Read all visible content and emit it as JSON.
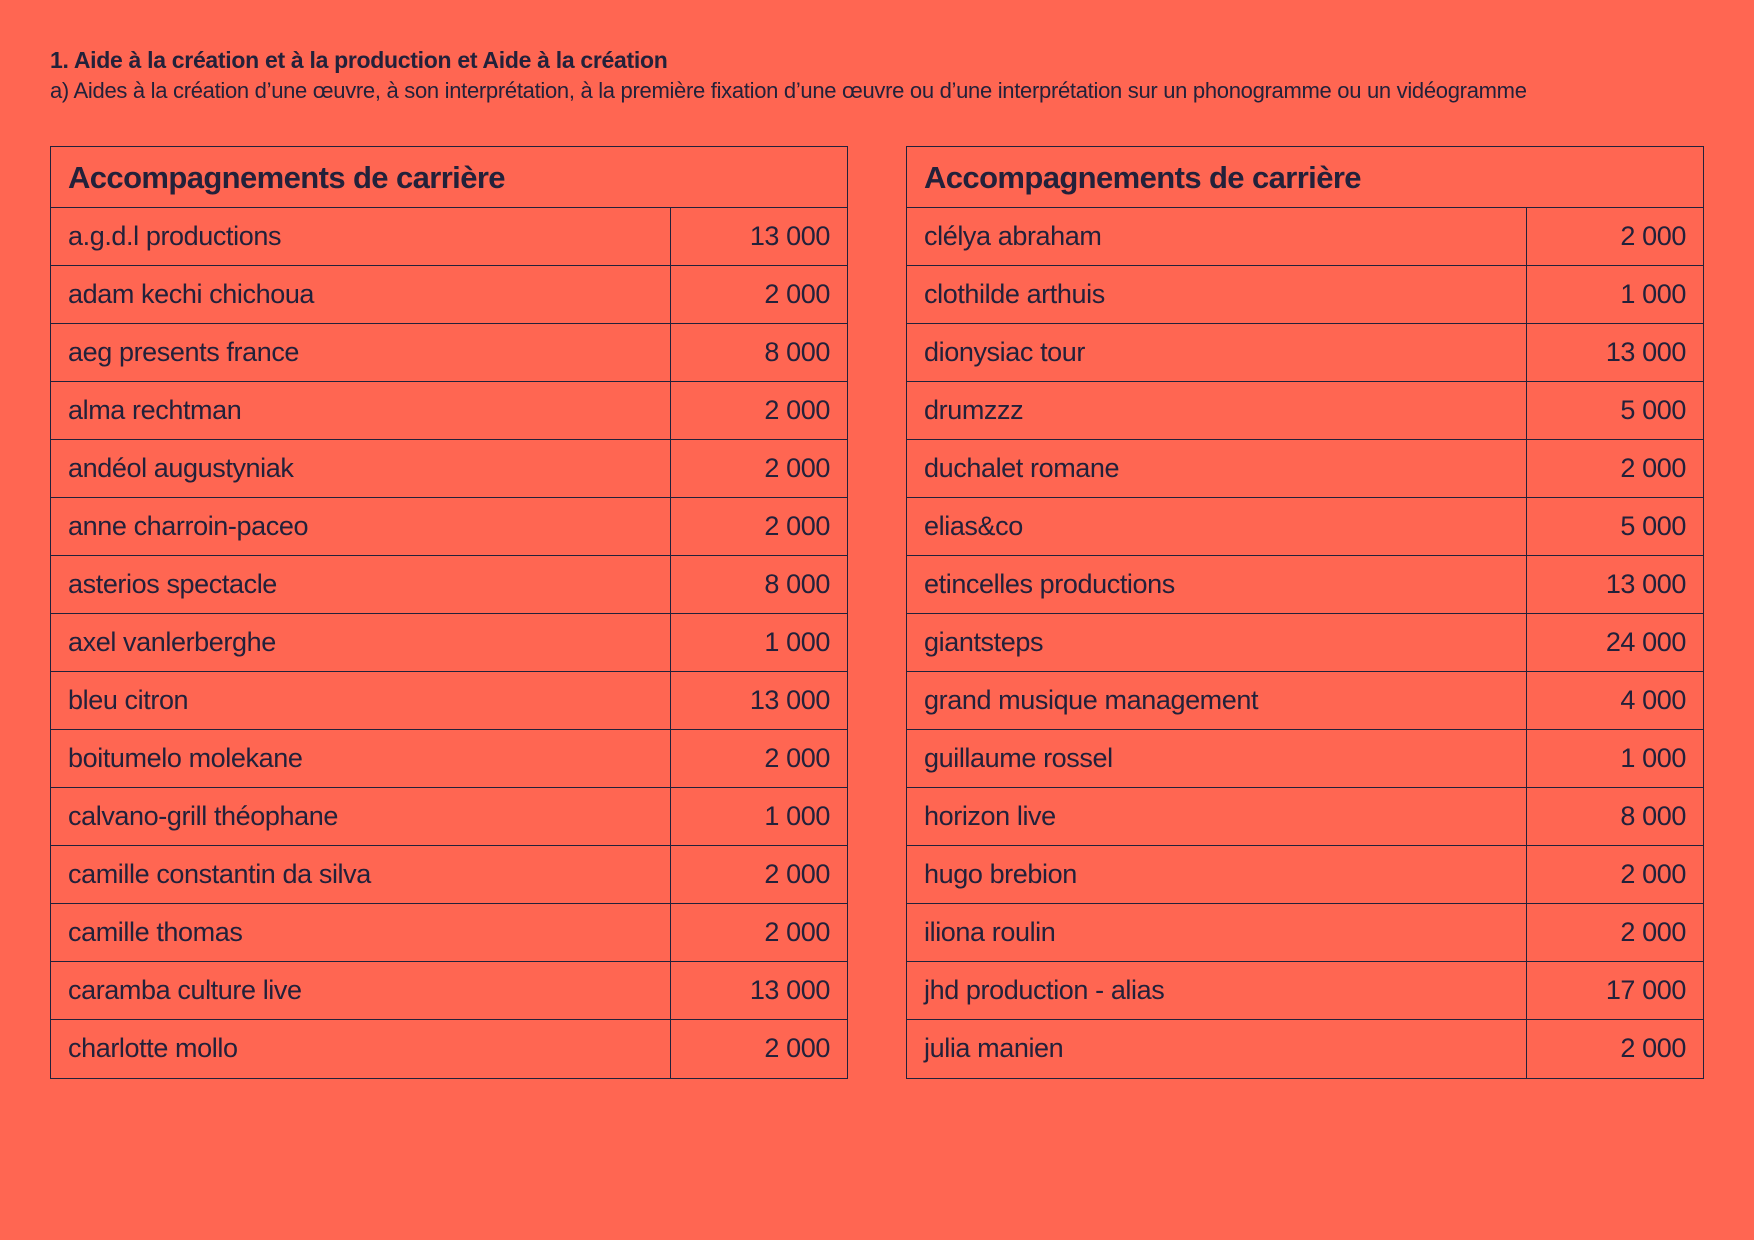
{
  "heading": {
    "title": "1. Aide à la création et à la production et Aide à la création",
    "subtitle": "a) Aides à la création d’une œuvre, à son interprétation, à la première fixation d’une œuvre ou d’une interprétation sur un phonogramme ou un vidéogramme"
  },
  "tables": [
    {
      "title": "Accompagnements de carrière",
      "rows": [
        {
          "name": "a.g.d.l productions",
          "amount": "13 000"
        },
        {
          "name": "adam kechi chichoua",
          "amount": "2 000"
        },
        {
          "name": "aeg presents france",
          "amount": "8 000"
        },
        {
          "name": "alma rechtman",
          "amount": "2 000"
        },
        {
          "name": "andéol augustyniak",
          "amount": "2 000"
        },
        {
          "name": "anne charroin-paceo",
          "amount": "2 000"
        },
        {
          "name": "asterios spectacle",
          "amount": "8 000"
        },
        {
          "name": "axel vanlerberghe",
          "amount": "1 000"
        },
        {
          "name": "bleu citron",
          "amount": "13 000"
        },
        {
          "name": "boitumelo molekane",
          "amount": "2 000"
        },
        {
          "name": "calvano-grill théophane",
          "amount": "1 000"
        },
        {
          "name": "camille constantin da silva",
          "amount": "2 000"
        },
        {
          "name": "camille thomas",
          "amount": "2 000"
        },
        {
          "name": "caramba culture live",
          "amount": "13 000"
        },
        {
          "name": "charlotte mollo",
          "amount": "2 000"
        }
      ]
    },
    {
      "title": "Accompagnements de carrière",
      "rows": [
        {
          "name": "clélya abraham",
          "amount": "2 000"
        },
        {
          "name": "clothilde arthuis",
          "amount": "1 000"
        },
        {
          "name": "dionysiac tour",
          "amount": "13 000"
        },
        {
          "name": "drumzzz",
          "amount": "5 000"
        },
        {
          "name": "duchalet romane",
          "amount": "2 000"
        },
        {
          "name": "elias&co",
          "amount": "5 000"
        },
        {
          "name": "etincelles productions",
          "amount": "13 000"
        },
        {
          "name": "giantsteps",
          "amount": "24 000"
        },
        {
          "name": "grand musique management",
          "amount": "4 000"
        },
        {
          "name": "guillaume rossel",
          "amount": "1 000"
        },
        {
          "name": "horizon live",
          "amount": "8 000"
        },
        {
          "name": "hugo brebion",
          "amount": "2 000"
        },
        {
          "name": "iliona roulin",
          "amount": "2 000"
        },
        {
          "name": "jhd production - alias",
          "amount": "17 000"
        },
        {
          "name": "julia manien",
          "amount": "2 000"
        }
      ]
    }
  ]
}
